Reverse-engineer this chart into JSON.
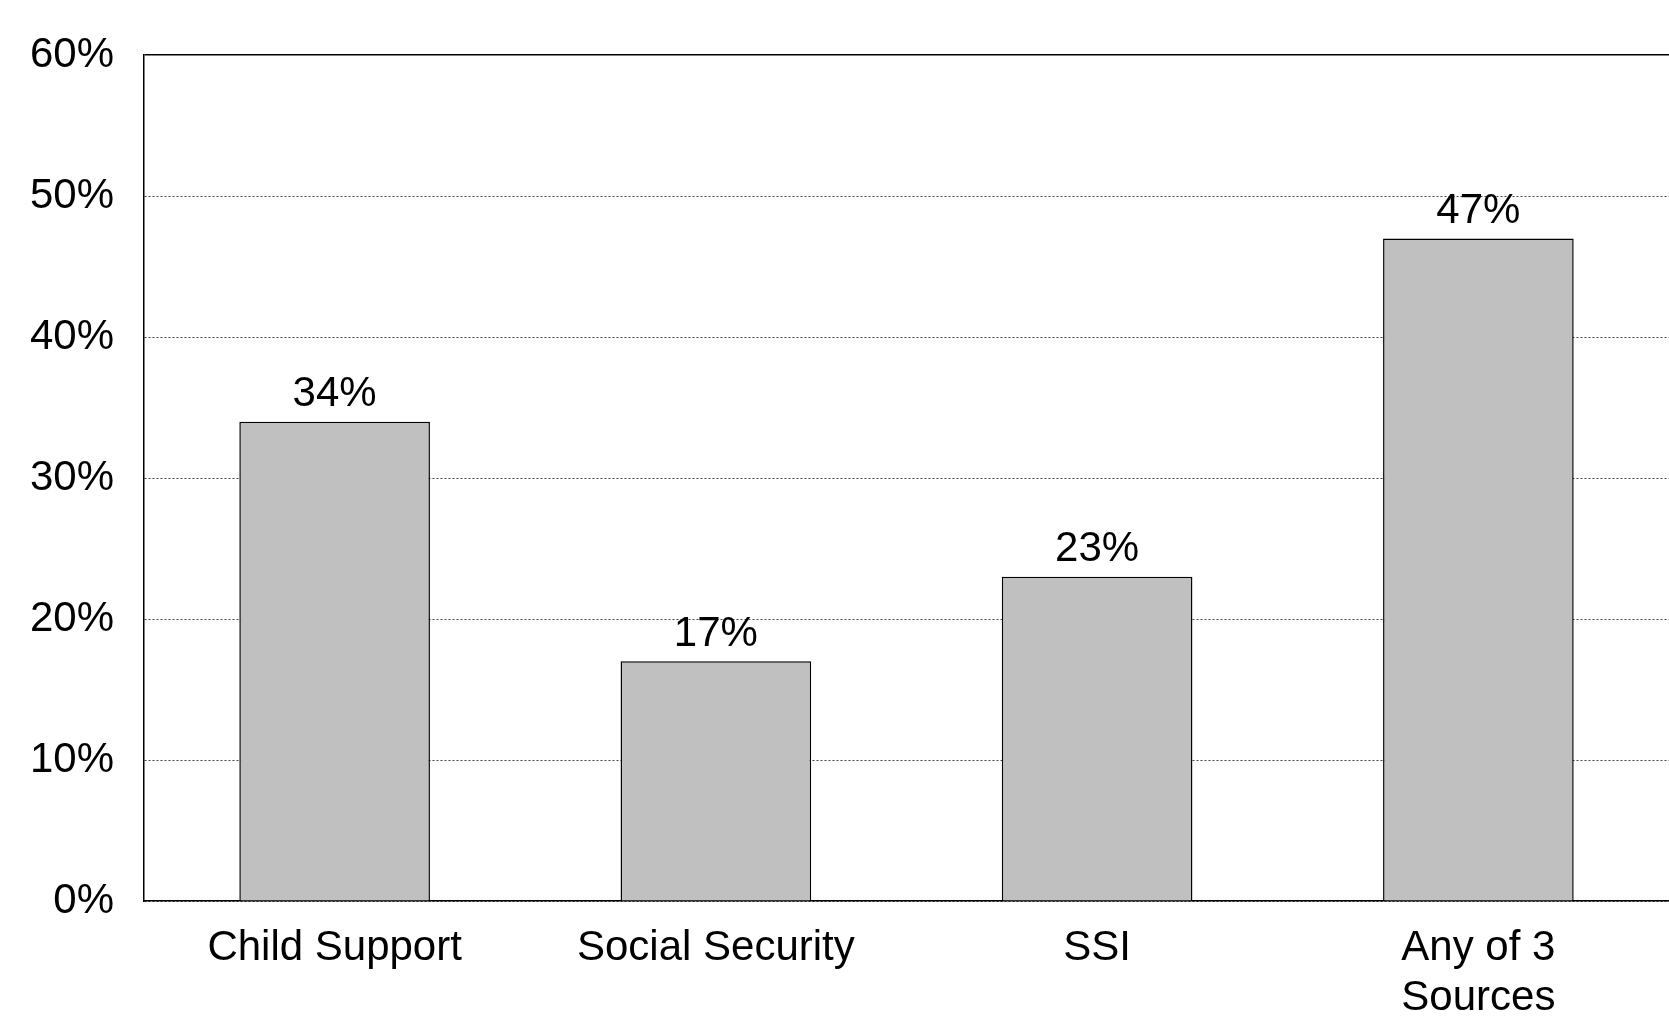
{
  "chart_data": {
    "type": "bar",
    "categories": [
      "Child Support",
      "Social Security",
      "SSI",
      "Any of 3\nSources"
    ],
    "values": [
      34,
      17,
      23,
      47
    ],
    "value_labels": [
      "34%",
      "17%",
      "23%",
      "47%"
    ],
    "color": "#c0c0c0",
    "ylim": [
      0,
      60
    ],
    "yticks": [
      {
        "value": 0,
        "label": "0%"
      },
      {
        "value": 10,
        "label": "10%"
      },
      {
        "value": 20,
        "label": "20%"
      },
      {
        "value": 30,
        "label": "30%"
      },
      {
        "value": 40,
        "label": "40%"
      },
      {
        "value": 50,
        "label": "50%"
      },
      {
        "value": 60,
        "label": "60%"
      }
    ],
    "grid": "y",
    "legend": false
  }
}
